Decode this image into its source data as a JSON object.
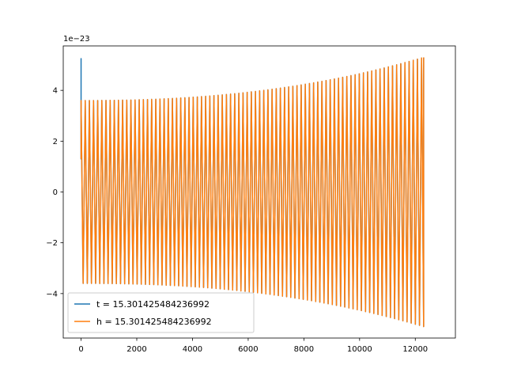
{
  "chart_data": {
    "type": "line",
    "title": "",
    "xlabel": "",
    "ylabel": "",
    "offset_text": "1e−23",
    "xlim": [
      -640,
      13440
    ],
    "ylim": [
      -5.75,
      5.75
    ],
    "x_ticks": [
      0,
      2000,
      4000,
      6000,
      8000,
      10000,
      12000
    ],
    "x_tick_labels": [
      "0",
      "2000",
      "4000",
      "6000",
      "8000",
      "10000",
      "12000"
    ],
    "y_ticks": [
      -4,
      -2,
      0,
      2,
      4
    ],
    "y_tick_labels": [
      "−4",
      "−2",
      "0",
      "2",
      "4"
    ],
    "legend_position": "lower-left",
    "grid": false,
    "series": [
      {
        "name": "t = 15.301425484236992",
        "color": "#1f77b4",
        "x_range": [
          0,
          12300
        ],
        "envelope_start": 3.6,
        "envelope_end": 5.3,
        "initial_spike": 5.25,
        "cycles": 165
      },
      {
        "name": "h = 15.301425484236992",
        "color": "#ff7f0e",
        "x_range": [
          0,
          12300
        ],
        "envelope_start": 3.6,
        "envelope_end": 5.3,
        "cycles": 165
      }
    ]
  }
}
